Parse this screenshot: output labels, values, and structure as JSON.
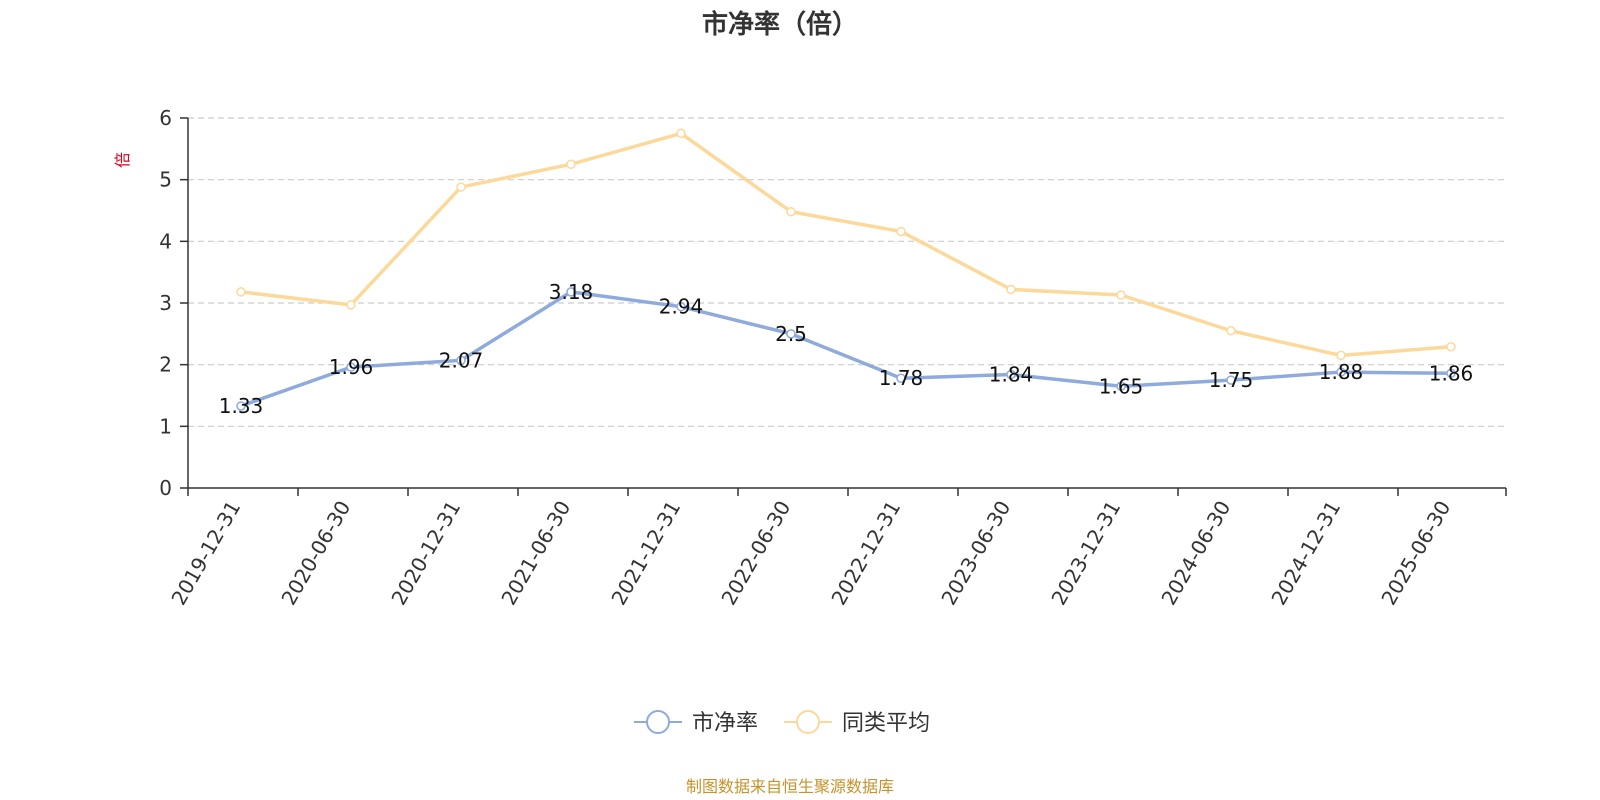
{
  "chart_data": {
    "type": "line",
    "title": "市净率（倍）",
    "ylabel": "倍",
    "xlabel": "",
    "ylim": [
      0,
      6
    ],
    "yticks": [
      0,
      1,
      2,
      3,
      4,
      5,
      6
    ],
    "grid": true,
    "legend_position": "bottom",
    "categories": [
      "2019-12-31",
      "2020-06-30",
      "2020-12-31",
      "2021-06-30",
      "2021-12-31",
      "2022-06-30",
      "2022-12-31",
      "2023-06-30",
      "2023-12-31",
      "2024-06-30",
      "2024-12-31",
      "2025-06-30"
    ],
    "series": [
      {
        "name": "市净率",
        "color": "#8faadc",
        "show_labels": true,
        "values": [
          1.33,
          1.96,
          2.07,
          3.18,
          2.94,
          2.5,
          1.78,
          1.84,
          1.65,
          1.75,
          1.88,
          1.86
        ]
      },
      {
        "name": "同类平均",
        "color": "#fcd99a",
        "show_labels": false,
        "values": [
          3.18,
          2.97,
          4.88,
          5.25,
          5.75,
          4.48,
          4.16,
          3.22,
          3.13,
          2.55,
          2.15,
          2.29
        ]
      }
    ],
    "source": "制图数据来自恒生聚源数据库"
  },
  "colors": {
    "unit_label": "#e0001b",
    "source_text": "#c8922a",
    "axis": "#333333",
    "grid": "#cccccc"
  }
}
